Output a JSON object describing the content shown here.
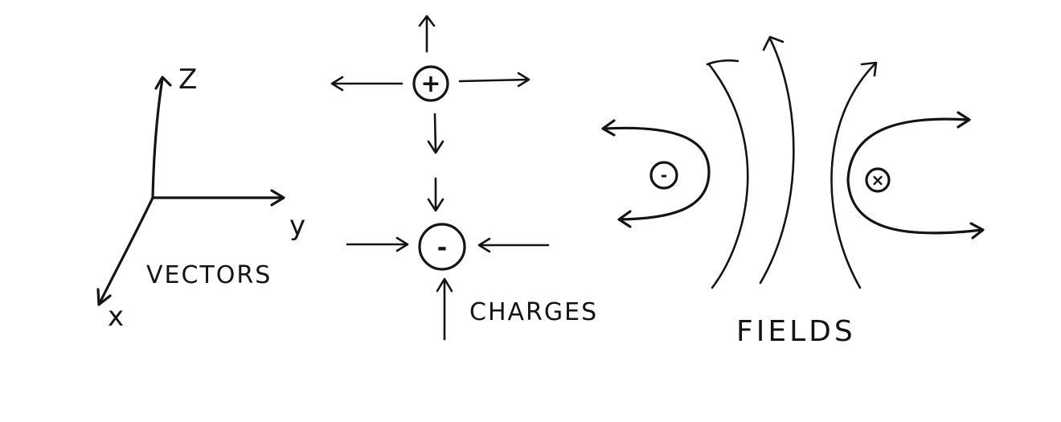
{
  "vectors": {
    "axes": {
      "z": "Z",
      "y": "y",
      "x": "x"
    },
    "caption": "VECTORS"
  },
  "charges": {
    "positive_sign": "+",
    "negative_sign": "-",
    "caption": "CHARGES"
  },
  "fields": {
    "left_charge_sign": "-",
    "right_charge_sign": "×",
    "caption": "FIELDS"
  }
}
